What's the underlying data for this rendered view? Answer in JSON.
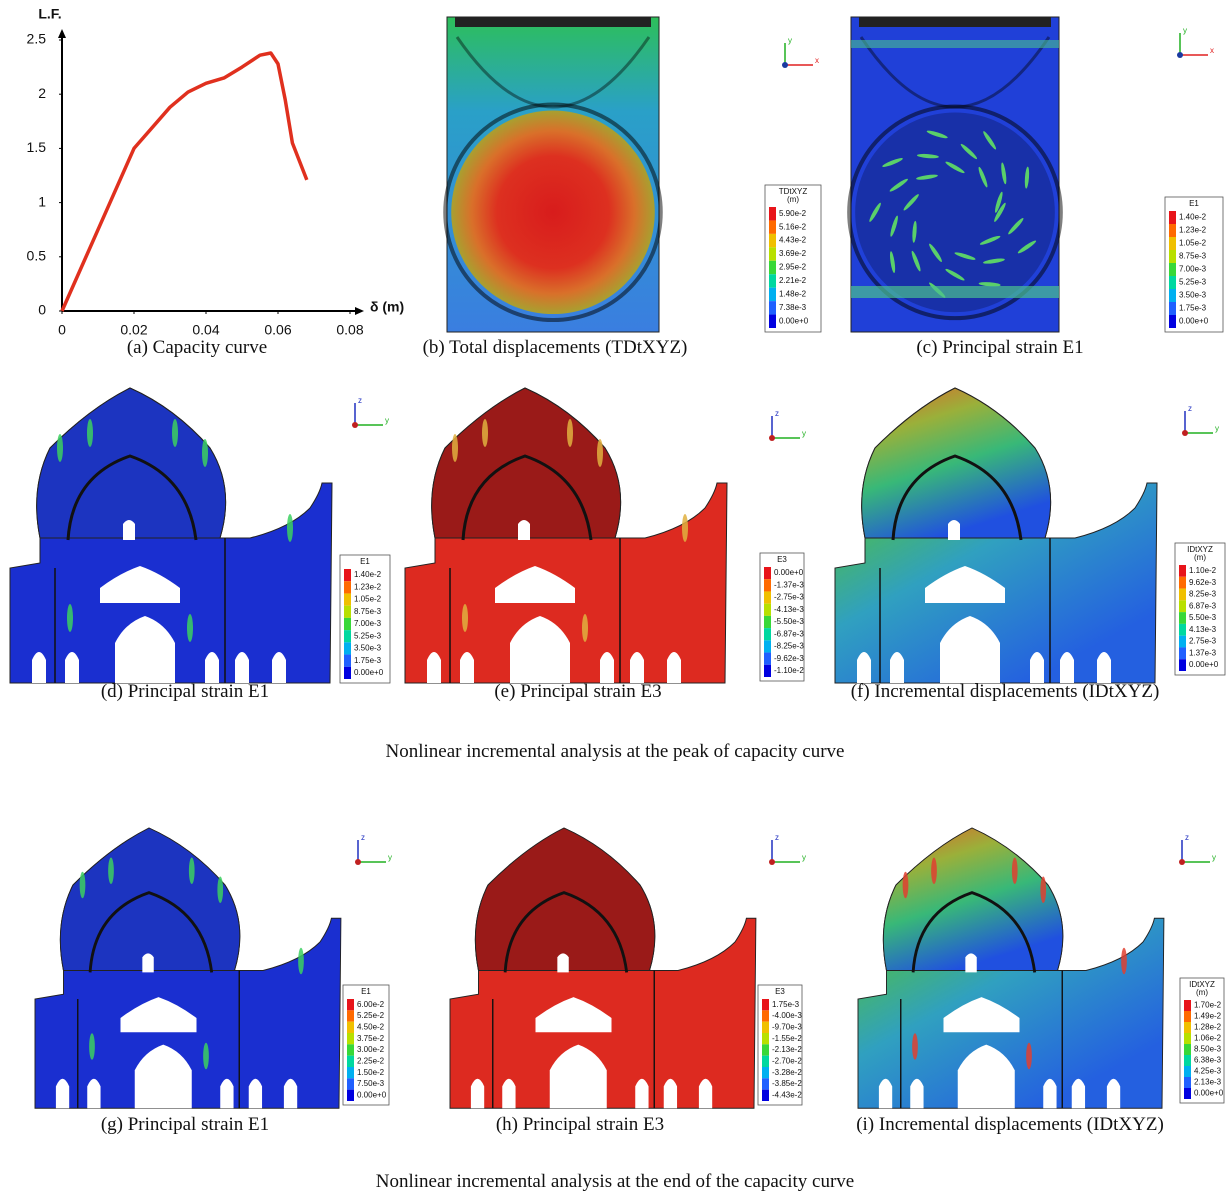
{
  "chart_data": {
    "type": "line",
    "xlabel": "δ (m)",
    "ylabel": "L.F.",
    "x": [
      0,
      0.01,
      0.02,
      0.03,
      0.035,
      0.04,
      0.045,
      0.05,
      0.055,
      0.058,
      0.06,
      0.062,
      0.064,
      0.068
    ],
    "values": [
      0,
      0.75,
      1.5,
      1.88,
      2.02,
      2.1,
      2.15,
      2.25,
      2.36,
      2.38,
      2.28,
      1.95,
      1.55,
      1.21
    ],
    "color": "#e0301e",
    "xlim": [
      0,
      0.08
    ],
    "xticks": [
      0,
      0.02,
      0.04,
      0.06,
      0.08
    ],
    "ylim": [
      0,
      2.5
    ],
    "yticks": [
      0,
      0.5,
      1,
      1.5,
      2,
      2.5
    ]
  },
  "triad": {
    "x": "x",
    "y": "y",
    "z": "z"
  },
  "panels": [
    {
      "caption": "(a) Capacity curve"
    },
    {
      "caption": "(b) Total displacements (TDtXYZ)",
      "legend": {
        "title": "TDtXYZ",
        "unit": "(m)",
        "labels": [
          "5.90e-2",
          "5.16e-2",
          "4.43e-2",
          "3.69e-2",
          "2.95e-2",
          "2.21e-2",
          "1.48e-2",
          "7.38e-3",
          "0.00e+0"
        ]
      }
    },
    {
      "caption": "(c) Principal strain E1",
      "legend": {
        "title": "E1",
        "labels": [
          "1.40e-2",
          "1.23e-2",
          "1.05e-2",
          "8.75e-3",
          "7.00e-3",
          "5.25e-3",
          "3.50e-3",
          "1.75e-3",
          "0.00e+0"
        ]
      }
    },
    {
      "caption": "(d) Principal strain E1",
      "legend": {
        "title": "E1",
        "labels": [
          "1.40e-2",
          "1.23e-2",
          "1.05e-2",
          "8.75e-3",
          "7.00e-3",
          "5.25e-3",
          "3.50e-3",
          "1.75e-3",
          "0.00e+0"
        ]
      }
    },
    {
      "caption": "(e) Principal strain E3",
      "legend": {
        "title": "E3",
        "labels": [
          "0.00e+0",
          "-1.37e-3",
          "-2.75e-3",
          "-4.13e-3",
          "-5.50e-3",
          "-6.87e-3",
          "-8.25e-3",
          "-9.62e-3",
          "-1.10e-2"
        ]
      }
    },
    {
      "caption": "(f) Incremental displacements (IDtXYZ)",
      "legend": {
        "title": "IDtXYZ",
        "unit": "(m)",
        "labels": [
          "1.10e-2",
          "9.62e-3",
          "8.25e-3",
          "6.87e-3",
          "5.50e-3",
          "4.13e-3",
          "2.75e-3",
          "1.37e-3",
          "0.00e+0"
        ]
      }
    },
    {
      "caption": "(g) Principal strain E1",
      "legend": {
        "title": "E1",
        "labels": [
          "6.00e-2",
          "5.25e-2",
          "4.50e-2",
          "3.75e-2",
          "3.00e-2",
          "2.25e-2",
          "1.50e-2",
          "7.50e-3",
          "0.00e+0"
        ]
      }
    },
    {
      "caption": "(h) Principal strain E3",
      "legend": {
        "title": "E3",
        "labels": [
          "1.75e-3",
          "-4.00e-3",
          "-9.70e-3",
          "-1.55e-2",
          "-2.13e-2",
          "-2.70e-2",
          "-3.28e-2",
          "-3.85e-2",
          "-4.43e-2"
        ]
      }
    },
    {
      "caption": "(i) Incremental displacements (IDtXYZ)",
      "legend": {
        "title": "IDtXYZ",
        "unit": "(m)",
        "labels": [
          "1.70e-2",
          "1.49e-2",
          "1.28e-2",
          "1.06e-2",
          "8.50e-3",
          "6.38e-3",
          "4.25e-3",
          "2.13e-3",
          "0.00e+0"
        ]
      }
    }
  ],
  "section_captions": [
    "Nonlinear incremental analysis at the peak of capacity curve",
    "Nonlinear incremental analysis at the end of the capacity curve"
  ]
}
